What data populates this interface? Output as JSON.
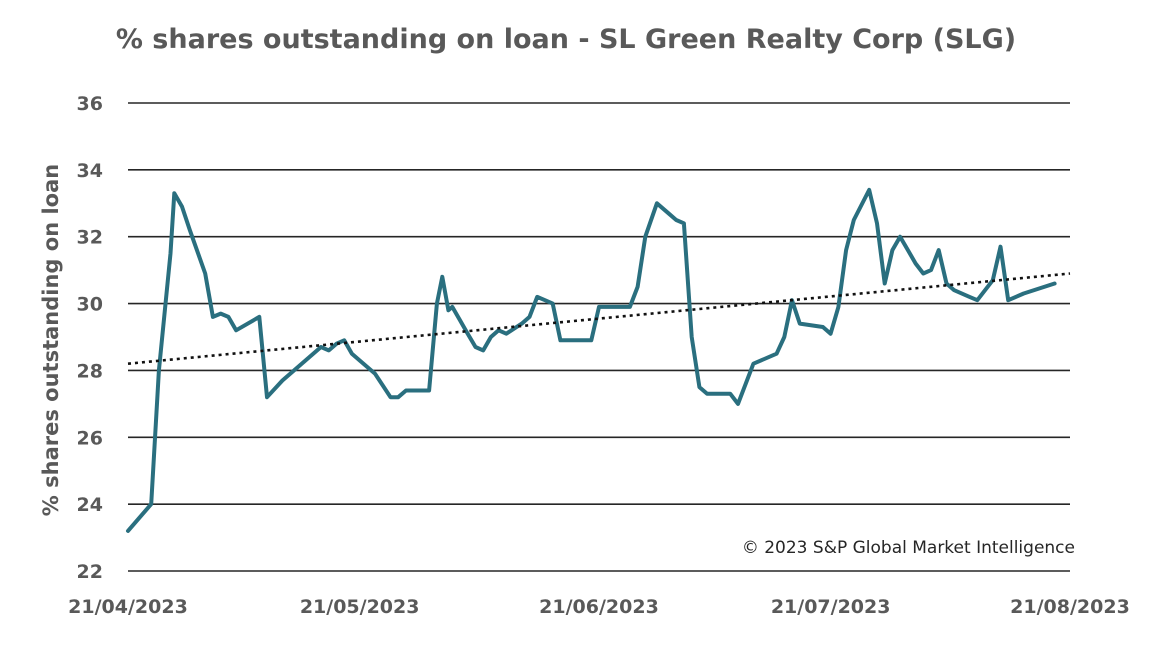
{
  "chart_data": {
    "type": "line",
    "title": "% shares outstanding on loan - SL Green Realty Corp (SLG)",
    "ylabel": "% shares outstanding on loan",
    "xlabel": "",
    "ylim": [
      22,
      36
    ],
    "yticks": [
      22,
      24,
      26,
      28,
      30,
      32,
      34,
      36
    ],
    "xlim": [
      0,
      122
    ],
    "xticks": [
      {
        "label": "21/04/2023",
        "day": 0
      },
      {
        "label": "21/05/2023",
        "day": 30
      },
      {
        "label": "21/06/2023",
        "day": 61
      },
      {
        "label": "21/07/2023",
        "day": 91
      },
      {
        "label": "21/08/2023",
        "day": 122
      }
    ],
    "grid": true,
    "annotation": "© 2023 S&P Global Market Intelligence",
    "series": [
      {
        "name": "% shares outstanding on loan",
        "color": "#2a6f7f",
        "points": [
          [
            0,
            23.2
          ],
          [
            3,
            24.0
          ],
          [
            4,
            28.0
          ],
          [
            5.5,
            31.5
          ],
          [
            6,
            33.3
          ],
          [
            7,
            32.9
          ],
          [
            8,
            32.2
          ],
          [
            10,
            30.9
          ],
          [
            11,
            29.6
          ],
          [
            12,
            29.7
          ],
          [
            13,
            29.6
          ],
          [
            14,
            29.2
          ],
          [
            17,
            29.6
          ],
          [
            18,
            27.2
          ],
          [
            20,
            27.7
          ],
          [
            23,
            28.3
          ],
          [
            25,
            28.7
          ],
          [
            26,
            28.6
          ],
          [
            27,
            28.8
          ],
          [
            28,
            28.9
          ],
          [
            29,
            28.5
          ],
          [
            32,
            27.9
          ],
          [
            34,
            27.2
          ],
          [
            35,
            27.2
          ],
          [
            36,
            27.4
          ],
          [
            39,
            27.4
          ],
          [
            40,
            30.0
          ],
          [
            40.7,
            30.8
          ],
          [
            41.5,
            29.8
          ],
          [
            42,
            29.9
          ],
          [
            43,
            29.5
          ],
          [
            44,
            29.1
          ],
          [
            45,
            28.7
          ],
          [
            46,
            28.6
          ],
          [
            47,
            29.0
          ],
          [
            48,
            29.2
          ],
          [
            49,
            29.1
          ],
          [
            51,
            29.4
          ],
          [
            52,
            29.6
          ],
          [
            53,
            30.2
          ],
          [
            54,
            30.1
          ],
          [
            55,
            30.0
          ],
          [
            56,
            28.9
          ],
          [
            60,
            28.9
          ],
          [
            61,
            29.9
          ],
          [
            65,
            29.9
          ],
          [
            66,
            30.5
          ],
          [
            67,
            32.0
          ],
          [
            68.5,
            33.0
          ],
          [
            70,
            32.7
          ],
          [
            71,
            32.5
          ],
          [
            72,
            32.4
          ],
          [
            73,
            29.0
          ],
          [
            74,
            27.5
          ],
          [
            75,
            27.3
          ],
          [
            78,
            27.3
          ],
          [
            79,
            27.0
          ],
          [
            80,
            27.6
          ],
          [
            81,
            28.2
          ],
          [
            84,
            28.5
          ],
          [
            85,
            29.0
          ],
          [
            86,
            30.1
          ],
          [
            87,
            29.4
          ],
          [
            90,
            29.3
          ],
          [
            91,
            29.1
          ],
          [
            92,
            29.9
          ],
          [
            93,
            31.6
          ],
          [
            94,
            32.5
          ],
          [
            96,
            33.4
          ],
          [
            97,
            32.4
          ],
          [
            98,
            30.6
          ],
          [
            99,
            31.6
          ],
          [
            100,
            32.0
          ],
          [
            101,
            31.6
          ],
          [
            102,
            31.2
          ],
          [
            103,
            30.9
          ],
          [
            104,
            31.0
          ],
          [
            105,
            31.6
          ],
          [
            106,
            30.6
          ],
          [
            107,
            30.4
          ],
          [
            109,
            30.2
          ],
          [
            110,
            30.1
          ],
          [
            112,
            30.7
          ],
          [
            113,
            31.7
          ],
          [
            114,
            30.1
          ],
          [
            116,
            30.3
          ],
          [
            120,
            30.6
          ]
        ]
      },
      {
        "name": "Linear trend",
        "color": "#111111",
        "style": "dotted",
        "points": [
          [
            0,
            28.2
          ],
          [
            122,
            30.9
          ]
        ]
      }
    ]
  }
}
